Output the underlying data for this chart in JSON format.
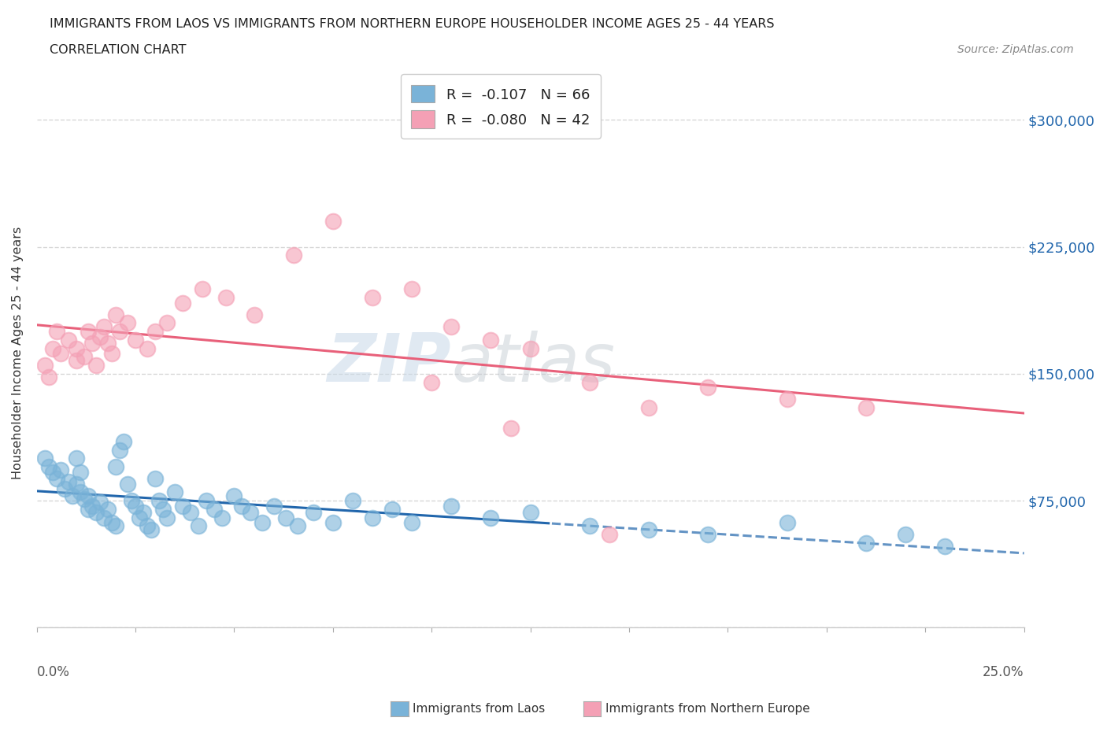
{
  "title_line1": "IMMIGRANTS FROM LAOS VS IMMIGRANTS FROM NORTHERN EUROPE HOUSEHOLDER INCOME AGES 25 - 44 YEARS",
  "title_line2": "CORRELATION CHART",
  "source_text": "Source: ZipAtlas.com",
  "ylabel": "Householder Income Ages 25 - 44 years",
  "xlim": [
    0.0,
    25.0
  ],
  "ylim": [
    0,
    325000
  ],
  "yticks": [
    0,
    75000,
    150000,
    225000,
    300000
  ],
  "ytick_labels": [
    "",
    "$75,000",
    "$150,000",
    "$225,000",
    "$300,000"
  ],
  "blue_color": "#7ab3d8",
  "pink_color": "#f4a0b5",
  "blue_line_color": "#2166ac",
  "pink_line_color": "#e8607a",
  "blue_r": -0.107,
  "pink_r": -0.08,
  "blue_n": 66,
  "pink_n": 42,
  "laos_x": [
    0.2,
    0.3,
    0.4,
    0.5,
    0.6,
    0.7,
    0.8,
    0.9,
    1.0,
    1.0,
    1.1,
    1.1,
    1.2,
    1.3,
    1.3,
    1.4,
    1.5,
    1.6,
    1.7,
    1.8,
    1.9,
    2.0,
    2.0,
    2.1,
    2.2,
    2.3,
    2.4,
    2.5,
    2.6,
    2.7,
    2.8,
    2.9,
    3.0,
    3.1,
    3.2,
    3.3,
    3.5,
    3.7,
    3.9,
    4.1,
    4.3,
    4.5,
    4.7,
    5.0,
    5.2,
    5.4,
    5.7,
    6.0,
    6.3,
    6.6,
    7.0,
    7.5,
    8.0,
    8.5,
    9.0,
    9.5,
    10.5,
    11.5,
    12.5,
    14.0,
    15.5,
    17.0,
    19.0,
    21.0,
    22.0,
    23.0
  ],
  "laos_y": [
    100000,
    95000,
    92000,
    88000,
    93000,
    82000,
    86000,
    78000,
    100000,
    85000,
    80000,
    92000,
    76000,
    70000,
    78000,
    72000,
    68000,
    74000,
    65000,
    70000,
    62000,
    60000,
    95000,
    105000,
    110000,
    85000,
    75000,
    72000,
    65000,
    68000,
    60000,
    58000,
    88000,
    75000,
    70000,
    65000,
    80000,
    72000,
    68000,
    60000,
    75000,
    70000,
    65000,
    78000,
    72000,
    68000,
    62000,
    72000,
    65000,
    60000,
    68000,
    62000,
    75000,
    65000,
    70000,
    62000,
    72000,
    65000,
    68000,
    60000,
    58000,
    55000,
    62000,
    50000,
    55000,
    48000
  ],
  "north_europe_x": [
    0.2,
    0.3,
    0.4,
    0.5,
    0.6,
    0.8,
    1.0,
    1.0,
    1.2,
    1.3,
    1.4,
    1.5,
    1.6,
    1.7,
    1.8,
    1.9,
    2.0,
    2.1,
    2.3,
    2.5,
    2.8,
    3.0,
    3.3,
    3.7,
    4.2,
    4.8,
    5.5,
    6.5,
    7.5,
    8.5,
    9.5,
    10.5,
    11.5,
    12.5,
    14.0,
    15.5,
    17.0,
    19.0,
    21.0,
    14.5,
    12.0,
    10.0
  ],
  "north_europe_y": [
    155000,
    148000,
    165000,
    175000,
    162000,
    170000,
    158000,
    165000,
    160000,
    175000,
    168000,
    155000,
    172000,
    178000,
    168000,
    162000,
    185000,
    175000,
    180000,
    170000,
    165000,
    175000,
    180000,
    192000,
    200000,
    195000,
    185000,
    220000,
    240000,
    195000,
    200000,
    178000,
    170000,
    165000,
    145000,
    130000,
    142000,
    135000,
    130000,
    55000,
    118000,
    145000
  ]
}
